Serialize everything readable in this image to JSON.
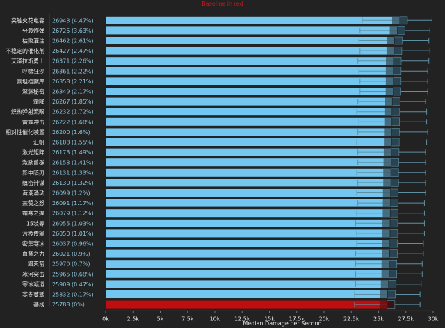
{
  "chart_data": {
    "type": "bar",
    "orientation": "horizontal",
    "title": "Baseline in red",
    "xlabel": "Median Damage per Second",
    "ylabel": "",
    "xlim": [
      0,
      30000
    ],
    "xticks": [
      0,
      2500,
      5000,
      7500,
      10000,
      12500,
      15000,
      17500,
      20000,
      22500,
      25000,
      27500,
      30000
    ],
    "xtick_labels": [
      "0k",
      "2.5k",
      "5k",
      "7.5k",
      "10k",
      "12.5k",
      "15k",
      "17.5k",
      "20k",
      "22.5k",
      "25k",
      "27.5k",
      "30k"
    ],
    "grid": false,
    "rows": [
      {
        "label": "突触火花电容",
        "value": 26943,
        "pct": "4.47%",
        "whisker_min": 23500,
        "whisker_max": 29900
      },
      {
        "label": "分裂炸弹",
        "value": 26725,
        "pct": "3.63%",
        "whisker_min": 23300,
        "whisker_max": 29700
      },
      {
        "label": "枯败灌注",
        "value": 26462,
        "pct": "2.61%",
        "whisker_min": 23200,
        "whisker_max": 29600
      },
      {
        "label": "不稳定的催化剂",
        "value": 26427,
        "pct": "2.47%",
        "whisker_min": 23300,
        "whisker_max": 29700
      },
      {
        "label": "艾泽拉斯勇士",
        "value": 26371,
        "pct": "2.26%",
        "whisker_min": 23100,
        "whisker_max": 29600
      },
      {
        "label": "呼啸狂沙",
        "value": 26361,
        "pct": "2.22%",
        "whisker_min": 23200,
        "whisker_max": 29500
      },
      {
        "label": "泰坦档案库",
        "value": 26358,
        "pct": "2.21%",
        "whisker_min": 23300,
        "whisker_max": 29500
      },
      {
        "label": "深渊秘密",
        "value": 26349,
        "pct": "2.17%",
        "whisker_min": 23300,
        "whisker_max": 29500
      },
      {
        "label": "霜降",
        "value": 26267,
        "pct": "1.85%",
        "whisker_min": 23100,
        "whisker_max": 29300
      },
      {
        "label": "炽热弹射流眼",
        "value": 26232,
        "pct": "1.72%",
        "whisker_min": 23000,
        "whisker_max": 29400
      },
      {
        "label": "雷霆冲击",
        "value": 26222,
        "pct": "1.68%",
        "whisker_min": 23200,
        "whisker_max": 29400
      },
      {
        "label": "相对性催化装置",
        "value": 26200,
        "pct": "1.6%",
        "whisker_min": 23100,
        "whisker_max": 29500
      },
      {
        "label": "汇帆",
        "value": 26188,
        "pct": "1.55%",
        "whisker_min": 23000,
        "whisker_max": 29400
      },
      {
        "label": "激光矩阵",
        "value": 26173,
        "pct": "1.49%",
        "whisker_min": 23100,
        "whisker_max": 29300
      },
      {
        "label": "激励兽群",
        "value": 26153,
        "pct": "1.41%",
        "whisker_min": 23100,
        "whisker_max": 29300
      },
      {
        "label": "影中暗刃",
        "value": 26131,
        "pct": "1.33%",
        "whisker_min": 23000,
        "whisker_max": 29300
      },
      {
        "label": "缜密计谋",
        "value": 26130,
        "pct": "1.32%",
        "whisker_min": 23100,
        "whisker_max": 29300
      },
      {
        "label": "海潮涌动",
        "value": 26099,
        "pct": "1.2%",
        "whisker_min": 23000,
        "whisker_max": 29300
      },
      {
        "label": "莱赞之怒",
        "value": 26091,
        "pct": "1.17%",
        "whisker_min": 23100,
        "whisker_max": 29200
      },
      {
        "label": "霜寒之握",
        "value": 26079,
        "pct": "1.12%",
        "whisker_min": 23000,
        "whisker_max": 29200
      },
      {
        "label": "15装等",
        "value": 26055,
        "pct": "1.03%",
        "whisker_min": 22900,
        "whisker_max": 29200
      },
      {
        "label": "污秽传输",
        "value": 26050,
        "pct": "1.01%",
        "whisker_min": 23000,
        "whisker_max": 29200
      },
      {
        "label": "密集寒冰",
        "value": 26037,
        "pct": "0.96%",
        "whisker_min": 23000,
        "whisker_max": 29100
      },
      {
        "label": "血祭之力",
        "value": 26021,
        "pct": "0.9%",
        "whisker_min": 22900,
        "whisker_max": 29100
      },
      {
        "label": "毁灭箭",
        "value": 25970,
        "pct": "0.7%",
        "whisker_min": 22900,
        "whisker_max": 29000
      },
      {
        "label": "冰河突击",
        "value": 25965,
        "pct": "0.68%",
        "whisker_min": 22900,
        "whisker_max": 29000
      },
      {
        "label": "寒冰凝道",
        "value": 25909,
        "pct": "0.47%",
        "whisker_min": 22900,
        "whisker_max": 28900
      },
      {
        "label": "寒冬蔓延",
        "value": 25832,
        "pct": "0.17%",
        "whisker_min": 22800,
        "whisker_max": 28800
      },
      {
        "label": "基线",
        "value": 25788,
        "pct": "0%",
        "baseline": true,
        "whisker_min": 22800,
        "whisker_max": 28800
      }
    ]
  },
  "colors": {
    "background": "#222222",
    "bar": "#72c6f0",
    "bar_edge": "#9bd8f6",
    "baseline_bar": "#c00d0d",
    "baseline_label": "#d81b1b",
    "box": "#3d5c6b",
    "box_dark": "#294350",
    "whisker": "#5f8fa3",
    "value_text": "#8cc3dc",
    "label_text": "#e8e8e8",
    "divider": "#2f4f5f",
    "title": "#c21a1a"
  }
}
